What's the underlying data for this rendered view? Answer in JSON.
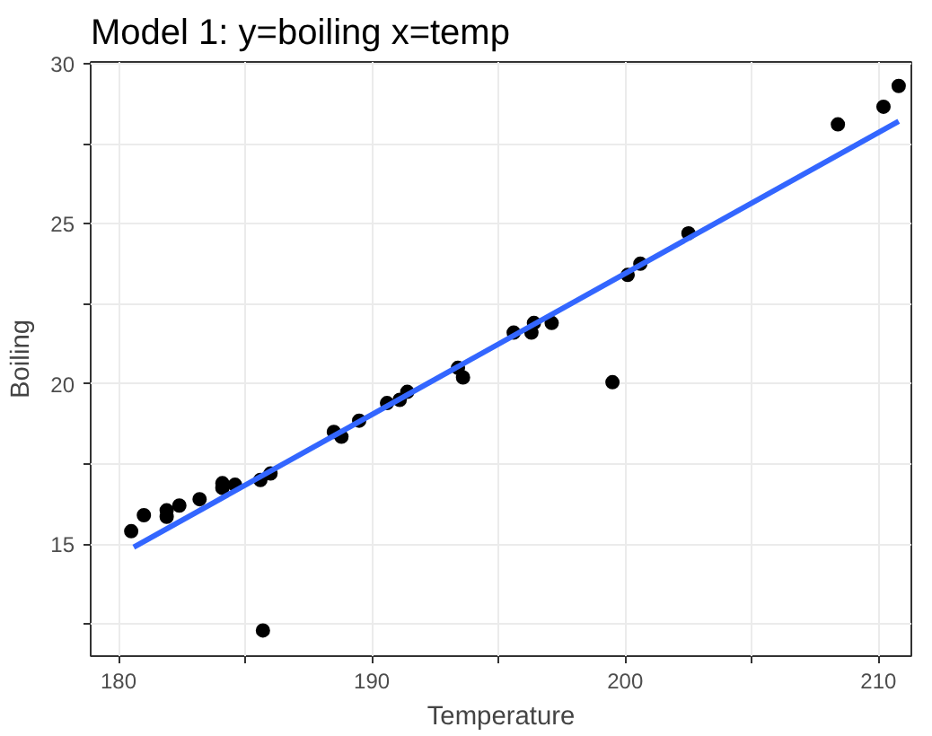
{
  "chart_data": {
    "type": "scatter",
    "title": "Model 1:  y=boiling   x=temp",
    "xlabel": "Temperature",
    "ylabel": "Boiling",
    "xlim": [
      178.9,
      211.3
    ],
    "ylim": [
      11.5,
      30.05
    ],
    "xticks": [
      180,
      {
        "value": 185,
        "label": null
      },
      190,
      {
        "value": 195,
        "label": null
      },
      200,
      {
        "value": 205,
        "label": null
      },
      210
    ],
    "yticks": [
      {
        "value": 12.5,
        "label": null
      },
      15,
      {
        "value": 17.5,
        "label": null
      },
      20,
      {
        "value": 22.5,
        "label": null
      },
      25,
      {
        "value": 27.5,
        "label": null
      },
      30
    ],
    "grid": true,
    "series": [
      {
        "marker": "circle",
        "color": "#000000",
        "x": [
          180.5,
          181.0,
          181.9,
          181.9,
          182.4,
          183.2,
          184.1,
          184.1,
          184.6,
          185.6,
          186.0,
          185.7,
          188.5,
          188.8,
          189.5,
          190.6,
          191.1,
          191.4,
          193.4,
          193.6,
          195.6,
          196.3,
          196.4,
          197.1,
          199.5,
          200.1,
          200.6,
          202.5,
          208.4,
          210.2,
          210.8
        ],
        "values": [
          15.4,
          15.9,
          16.05,
          15.85,
          16.2,
          16.4,
          16.9,
          16.75,
          16.85,
          17.0,
          17.2,
          12.3,
          18.5,
          18.35,
          18.85,
          19.4,
          19.5,
          19.75,
          20.5,
          20.2,
          21.6,
          21.6,
          21.9,
          21.9,
          20.05,
          23.4,
          23.75,
          24.7,
          28.1,
          28.65,
          29.3
        ]
      },
      {
        "type": "line",
        "color": "#3366ff",
        "x": [
          180.6,
          210.8
        ],
        "values": [
          14.9,
          28.2
        ],
        "line_style": "solid",
        "marker": "none"
      }
    ]
  }
}
